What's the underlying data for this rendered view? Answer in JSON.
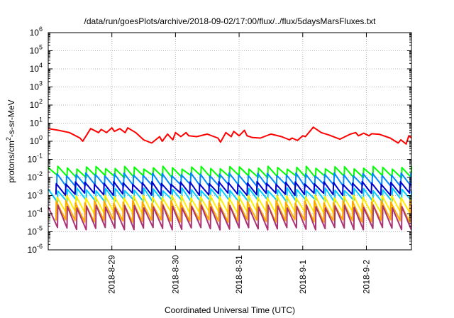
{
  "chart_data": {
    "type": "line",
    "title": "/data/run/goesPlots/archive/2018-09-02/17:00/flux/../flux/5daysMarsFluxes.txt",
    "xlabel": "Coordinated Universal Time (UTC)",
    "ylabel": {
      "before": "protons/cm",
      "sup": "2",
      "after": "-s-sr-MeV"
    },
    "y_scale": "log",
    "ylim": [
      1e-06,
      1000000.0
    ],
    "y_ticks": [
      {
        "value": 1e-06,
        "base": "10",
        "exp": "-6"
      },
      {
        "value": 1e-05,
        "base": "10",
        "exp": "-5"
      },
      {
        "value": 0.0001,
        "base": "10",
        "exp": "-4"
      },
      {
        "value": 0.001,
        "base": "10",
        "exp": "-3"
      },
      {
        "value": 0.01,
        "base": "10",
        "exp": "-2"
      },
      {
        "value": 0.1,
        "base": "10",
        "exp": "-1"
      },
      {
        "value": 1,
        "base": "10",
        "exp": "0"
      },
      {
        "value": 10,
        "base": "10",
        "exp": "1"
      },
      {
        "value": 100,
        "base": "10",
        "exp": "2"
      },
      {
        "value": 1000,
        "base": "10",
        "exp": "3"
      },
      {
        "value": 10000,
        "base": "10",
        "exp": "4"
      },
      {
        "value": 100000,
        "base": "10",
        "exp": "5"
      },
      {
        "value": 1000000,
        "base": "10",
        "exp": "6"
      }
    ],
    "xlim": [
      "2018-08-28 00:00",
      "2018-09-02 17:00"
    ],
    "x_ticks": [
      "2018-8-29",
      "2018-8-30",
      "2018-8-31",
      "2018-9-1",
      "2018-9-2"
    ],
    "grid": true,
    "legend": "none",
    "series": [
      {
        "color": "#ff0000",
        "x": [
          "2018-08-28 00:00",
          "2018-08-28 04:00",
          "2018-08-28 08:00",
          "2018-08-28 12:00",
          "2018-08-28 13:00",
          "2018-08-28 16:00",
          "2018-08-28 19:00",
          "2018-08-28 20:00",
          "2018-08-28 22:00",
          "2018-08-29 00:00",
          "2018-08-29 01:00",
          "2018-08-29 03:00",
          "2018-08-29 05:00",
          "2018-08-29 06:00",
          "2018-08-29 09:00",
          "2018-08-29 12:00",
          "2018-08-29 15:00",
          "2018-08-29 18:00",
          "2018-08-29 19:00",
          "2018-08-29 21:00",
          "2018-08-29 23:00",
          "2018-08-30 00:00",
          "2018-08-30 02:00",
          "2018-08-30 04:00",
          "2018-08-30 05:00",
          "2018-08-30 08:00",
          "2018-08-30 12:00",
          "2018-08-30 16:00",
          "2018-08-30 17:00",
          "2018-08-30 19:00",
          "2018-08-30 21:00",
          "2018-08-30 22:00",
          "2018-08-31 00:00",
          "2018-08-31 02:00",
          "2018-08-31 03:00",
          "2018-08-31 05:00",
          "2018-08-31 08:00",
          "2018-08-31 12:00",
          "2018-08-31 16:00",
          "2018-08-31 19:00",
          "2018-08-31 20:00",
          "2018-08-31 22:00",
          "2018-09-01 00:00",
          "2018-09-01 01:00",
          "2018-09-01 04:00",
          "2018-09-01 07:00",
          "2018-09-01 10:00",
          "2018-09-01 14:00",
          "2018-09-01 18:00",
          "2018-09-01 20:00",
          "2018-09-01 21:00",
          "2018-09-01 23:00",
          "2018-09-02 01:00",
          "2018-09-02 02:00",
          "2018-09-02 05:00",
          "2018-09-02 09:00",
          "2018-09-02 12:00",
          "2018-09-02 13:00",
          "2018-09-02 15:00",
          "2018-09-02 16:00",
          "2018-09-02 17:00"
        ],
        "y": [
          5,
          4,
          3,
          1.5,
          1,
          5,
          3,
          4.5,
          3,
          5.5,
          3.5,
          5,
          3,
          5.5,
          3,
          1.2,
          0.8,
          1.8,
          1,
          2.5,
          1.2,
          3,
          1.8,
          3,
          2,
          1.8,
          2.5,
          1.5,
          0.9,
          3,
          1.8,
          3.5,
          2,
          4,
          2,
          1.6,
          1.5,
          2.5,
          1.8,
          1.2,
          1.5,
          1.1,
          2,
          1.8,
          6,
          3,
          2.2,
          1.3,
          2.5,
          3,
          2,
          2.8,
          2,
          2.6,
          2.4,
          1.5,
          0.8,
          1.2,
          0.7,
          2,
          1.5
        ]
      }
    ],
    "sawtooth_series": [
      {
        "color": "#00ff00",
        "peak": 0.035,
        "trough": 0.011,
        "cycles": 38
      },
      {
        "color": "#0088ff",
        "peak": 0.015,
        "trough": 0.0035,
        "cycles": 38
      },
      {
        "color": "#0000cc",
        "peak": 0.005,
        "trough": 0.0012,
        "cycles": 38
      },
      {
        "color": "#00ccff",
        "peak": 0.0022,
        "trough": 0.0005,
        "cycles": 38
      },
      {
        "color": "#ffee00",
        "peak": 0.0009,
        "trough": 0.0001,
        "cycles": 38
      },
      {
        "color": "#ffaa00",
        "peak": 0.00045,
        "trough": 4e-05,
        "cycles": 38
      },
      {
        "color": "#aa3377",
        "peak": 0.00025,
        "trough": 1.5e-05,
        "cycles": 38
      }
    ]
  }
}
